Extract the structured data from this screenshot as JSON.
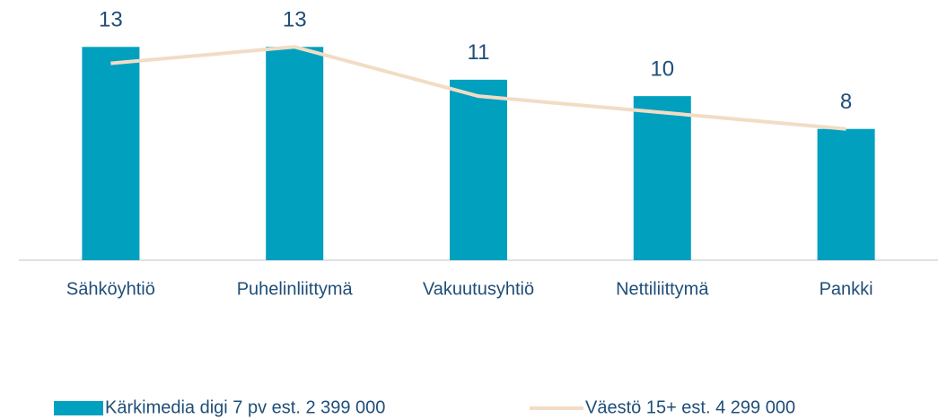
{
  "chart_data": {
    "type": "bar",
    "categories": [
      "Sähköyhtiö",
      "Puhelinliittymä",
      "Vakuutusyhtiö",
      "Nettiliittymä",
      "Pankki"
    ],
    "series": [
      {
        "name": "Kärkimedia digi 7 pv est. 2 399 000",
        "type": "bar",
        "color": "#00a0be",
        "values": [
          13,
          13,
          11,
          10,
          8
        ]
      },
      {
        "name": "Väestö 15+ est. 4 299 000",
        "type": "line",
        "color": "#f2dcc5",
        "values": [
          12,
          13,
          10,
          9,
          8
        ]
      }
    ],
    "ylim": [
      0,
      14
    ],
    "grid": false
  }
}
